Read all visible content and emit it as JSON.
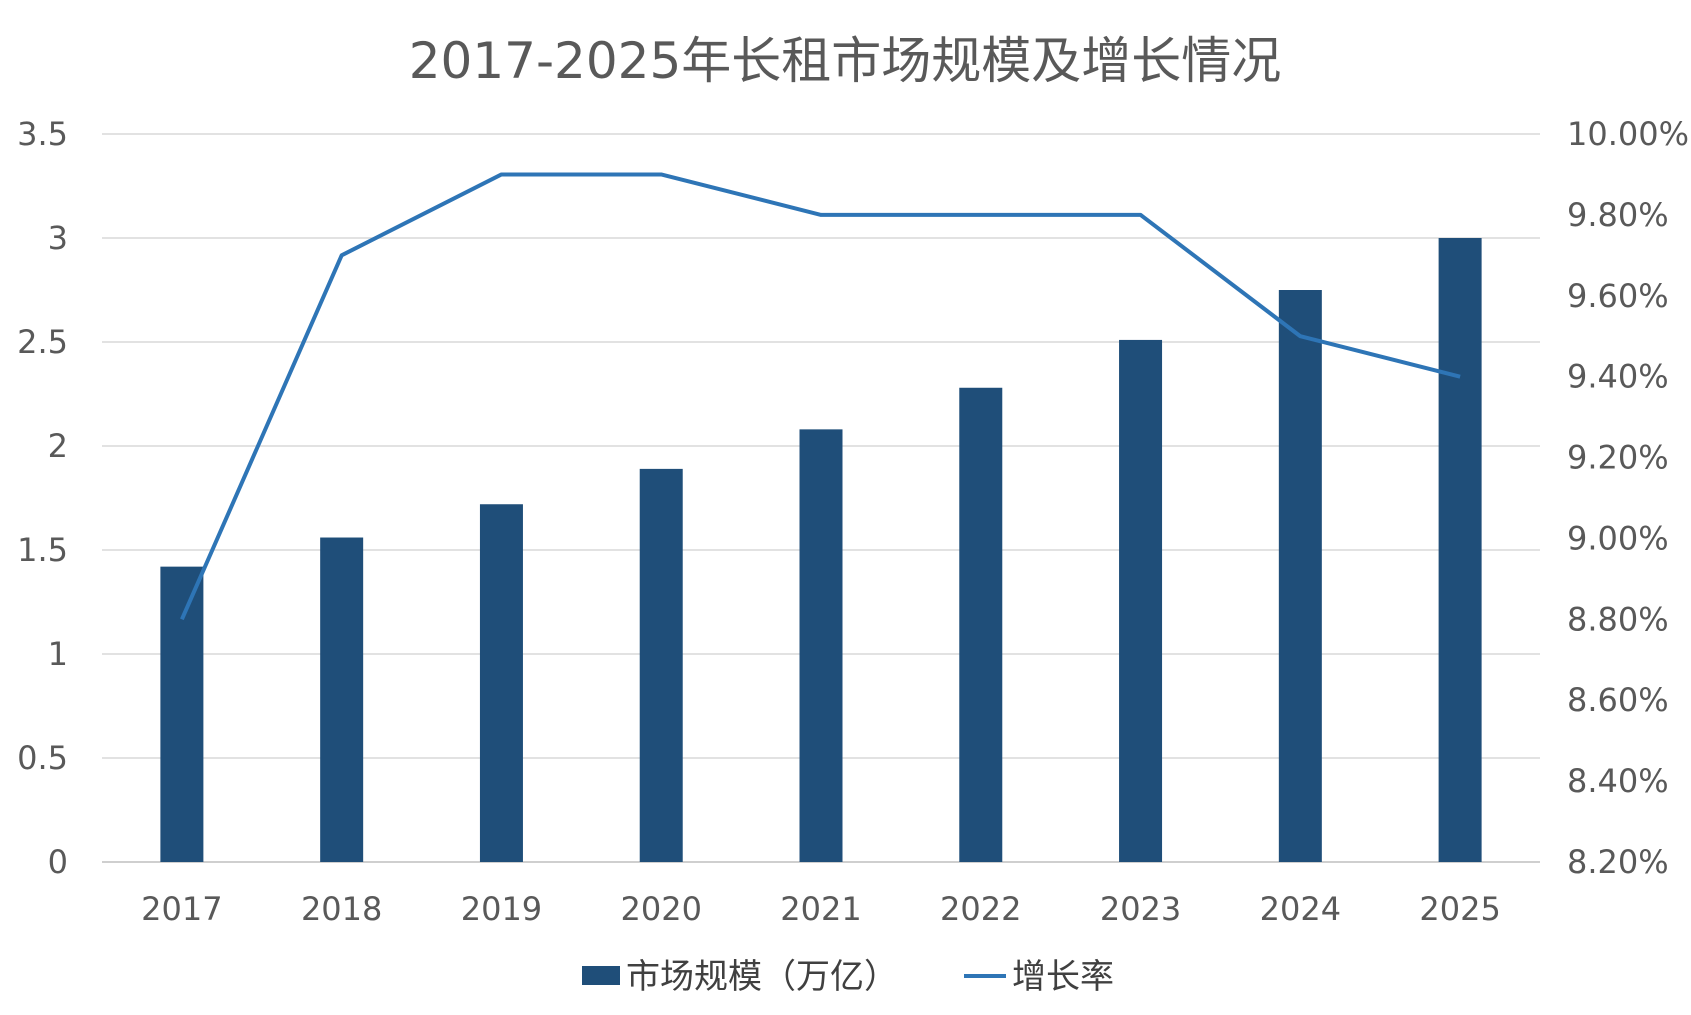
{
  "chart_data": {
    "type": "bar",
    "title": "2017-2025年长租市场规模及增长情况",
    "categories": [
      "2017",
      "2018",
      "2019",
      "2020",
      "2021",
      "2022",
      "2023",
      "2024",
      "2025"
    ],
    "series": [
      {
        "name": "市场规模（万亿）",
        "type": "bar",
        "axis": "left",
        "color": "#1f4e79",
        "values": [
          1.42,
          1.56,
          1.72,
          1.89,
          2.08,
          2.28,
          2.51,
          2.75,
          3.0
        ]
      },
      {
        "name": "增长率",
        "type": "line",
        "axis": "right",
        "color": "#2e75b6",
        "values": [
          8.8,
          9.7,
          9.9,
          9.9,
          9.8,
          9.8,
          9.8,
          9.5,
          9.4
        ]
      }
    ],
    "y_left": {
      "min": 0,
      "max": 3.5,
      "ticks": [
        0,
        0.5,
        1,
        1.5,
        2,
        2.5,
        3,
        3.5
      ],
      "tick_labels": [
        "0",
        "0.5",
        "1",
        "1.5",
        "2",
        "2.5",
        "3",
        "3.5"
      ]
    },
    "y_right": {
      "min": 8.2,
      "max": 10.0,
      "ticks": [
        8.2,
        8.4,
        8.6,
        8.8,
        9.0,
        9.2,
        9.4,
        9.6,
        9.8,
        10.0
      ],
      "tick_labels": [
        "8.20%",
        "8.40%",
        "8.60%",
        "8.80%",
        "9.00%",
        "9.20%",
        "9.40%",
        "9.60%",
        "9.80%",
        "10.00%"
      ]
    },
    "grid": true,
    "legend_position": "bottom"
  }
}
